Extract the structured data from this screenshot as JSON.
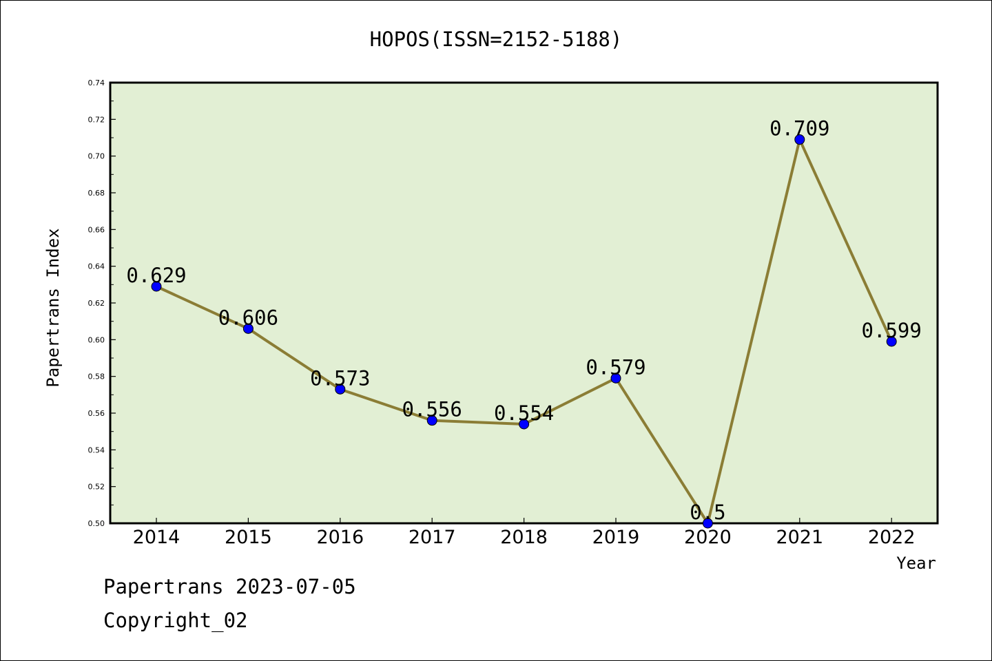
{
  "chart_data": {
    "type": "line",
    "title": "HOPOS(ISSN=2152-5188)",
    "xlabel": "Year",
    "ylabel": "Papertrans Index",
    "categories": [
      "2014",
      "2015",
      "2016",
      "2017",
      "2018",
      "2019",
      "2020",
      "2021",
      "2022"
    ],
    "series": [
      {
        "values": [
          0.629,
          0.606,
          0.573,
          0.556,
          0.554,
          0.579,
          0.5,
          0.709,
          0.599
        ],
        "labels": [
          "0.629",
          "0.606",
          "0.573",
          "0.556",
          "0.554",
          "0.579",
          "0.5",
          "0.709",
          "0.599"
        ]
      }
    ],
    "ylim": [
      0.5,
      0.74
    ],
    "yticks": [
      "0.50",
      "0.52",
      "0.54",
      "0.56",
      "0.58",
      "0.60",
      "0.62",
      "0.64",
      "0.66",
      "0.68",
      "0.70",
      "0.72",
      "0.74"
    ],
    "grid": false,
    "colors": {
      "plot_background": "#e2efd4",
      "line": "#8b7d35",
      "marker": "#0000ff"
    }
  },
  "footer": {
    "date_line": "Papertrans 2023-07-05",
    "copyright_line": "Copyright_02"
  }
}
